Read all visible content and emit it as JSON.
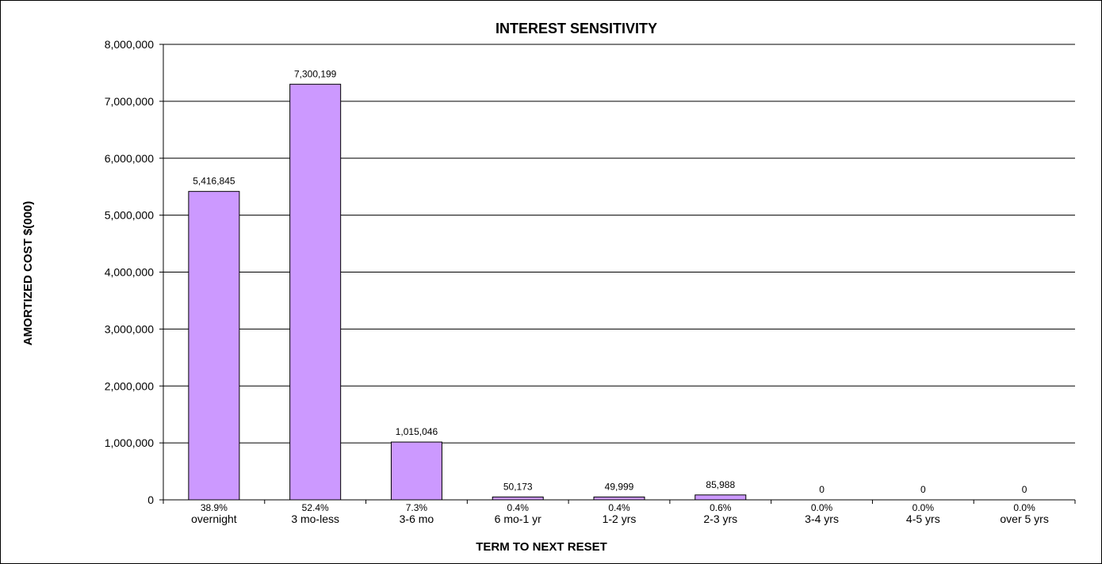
{
  "chart_data": {
    "type": "bar",
    "title": "INTEREST SENSITIVITY",
    "xlabel": "TERM TO NEXT RESET",
    "ylabel": "AMORTIZED COST $(000)",
    "ylim": [
      0,
      8000000
    ],
    "yticks": [
      0,
      1000000,
      2000000,
      3000000,
      4000000,
      5000000,
      6000000,
      7000000,
      8000000
    ],
    "ytick_labels": [
      "0",
      "1,000,000",
      "2,000,000",
      "3,000,000",
      "4,000,000",
      "5,000,000",
      "6,000,000",
      "7,000,000",
      "8,000,000"
    ],
    "categories": [
      "overnight",
      "3 mo-less",
      "3-6 mo",
      "6 mo-1 yr",
      "1-2 yrs",
      "2-3 yrs",
      "3-4 yrs",
      "4-5 yrs",
      "over 5 yrs"
    ],
    "percentages": [
      "38.9%",
      "52.4%",
      "7.3%",
      "0.4%",
      "0.4%",
      "0.6%",
      "0.0%",
      "0.0%",
      "0.0%"
    ],
    "values": [
      5416845,
      7300199,
      1015046,
      50173,
      49999,
      85988,
      0,
      0,
      0
    ],
    "data_labels": [
      "5,416,845",
      "7,300,199",
      "1,015,046",
      "50,173",
      "49,999",
      "85,988",
      "0",
      "0",
      "0"
    ],
    "bar_color": "#cc99ff",
    "grid": true,
    "legend": "none"
  }
}
